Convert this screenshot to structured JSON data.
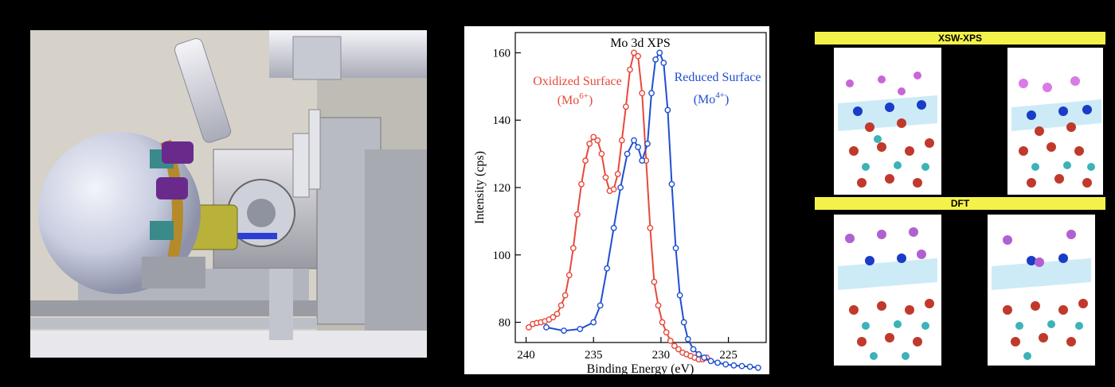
{
  "chart_data": {
    "type": "line",
    "title": "Mo 3d XPS",
    "xlabel": "Binding Energy (eV)",
    "ylabel": "Intensity (cps)",
    "xlim": [
      240.8,
      222.2
    ],
    "ylim": [
      74,
      166
    ],
    "x_ticks": [
      240,
      235,
      230,
      225
    ],
    "y_ticks": [
      80,
      100,
      120,
      140,
      160
    ],
    "grid": false,
    "legend": "inline annotations",
    "series": [
      {
        "name": "Oxidized Surface (Mo6+)",
        "color": "#e8483b",
        "x": [
          239.8,
          239.5,
          239.2,
          238.9,
          238.6,
          238.3,
          238.0,
          237.7,
          237.4,
          237.1,
          236.8,
          236.5,
          236.2,
          235.9,
          235.6,
          235.3,
          235.0,
          234.7,
          234.4,
          234.1,
          233.8,
          233.5,
          233.2,
          232.9,
          232.6,
          232.3,
          232.0,
          231.7,
          231.4,
          231.1,
          230.8,
          230.5,
          230.2,
          229.9,
          229.6,
          229.3,
          229.0,
          228.7,
          228.4,
          228.1,
          227.8,
          227.5,
          227.2,
          226.9,
          226.6
        ],
        "y": [
          78.5,
          79.5,
          79.8,
          80,
          80.3,
          80.8,
          81.5,
          82.5,
          85,
          88,
          94,
          102,
          112,
          121,
          128,
          133,
          135,
          134,
          130,
          123,
          119,
          119.5,
          124,
          134,
          144,
          155,
          160,
          159,
          148,
          128,
          108,
          92,
          85,
          80,
          77,
          74.5,
          73,
          72,
          71,
          70.5,
          70,
          69.5,
          69,
          69,
          69.5
        ]
      },
      {
        "name": "Reduced Surface (Mo4+)",
        "color": "#1f4fd1",
        "x": [
          238.5,
          237.2,
          236.0,
          235.0,
          234.5,
          234.0,
          233.5,
          233.0,
          232.5,
          232.0,
          231.7,
          231.4,
          231.0,
          230.7,
          230.4,
          230.1,
          229.8,
          229.5,
          229.2,
          228.9,
          228.6,
          228.3,
          228.0,
          227.6,
          227.2,
          226.8,
          226.3,
          225.8,
          225.2,
          224.6,
          224.0,
          223.4,
          222.8
        ],
        "y": [
          78.5,
          77.5,
          78,
          80,
          85,
          96,
          108,
          120,
          130,
          134,
          132,
          128,
          133,
          148,
          158,
          160,
          157,
          143,
          121,
          102,
          88,
          80,
          75,
          72,
          70.5,
          69.5,
          68.5,
          68,
          67.5,
          67.2,
          67,
          66.8,
          66.5
        ]
      }
    ],
    "annotations": {
      "oxidized_line1": "Oxidized Surface",
      "oxidized_line2_base": "(Mo",
      "oxidized_sup": "6+",
      "reduced_line1": "Reduced Surface",
      "reduced_line2_base": "(Mo",
      "reduced_sup": "4+",
      "close_paren": ")"
    }
  },
  "right_panel": {
    "top_header": "XSW-XPS",
    "bottom_header": "DFT"
  }
}
